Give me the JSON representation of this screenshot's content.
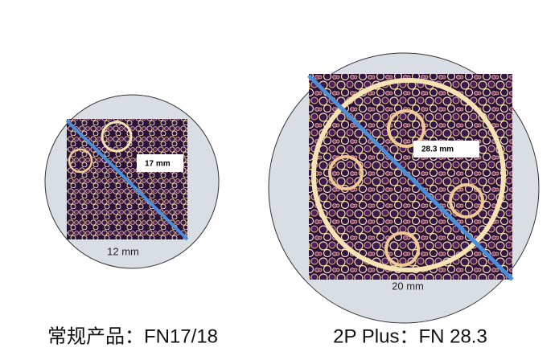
{
  "panels": [
    {
      "diagonal_label": "17 mm",
      "width_label": "12 mm",
      "caption": "常规产品：FN17/18"
    },
    {
      "diagonal_label": "28.3 mm",
      "width_label": "20 mm",
      "caption": "2P Plus：FN 28.3"
    }
  ]
}
